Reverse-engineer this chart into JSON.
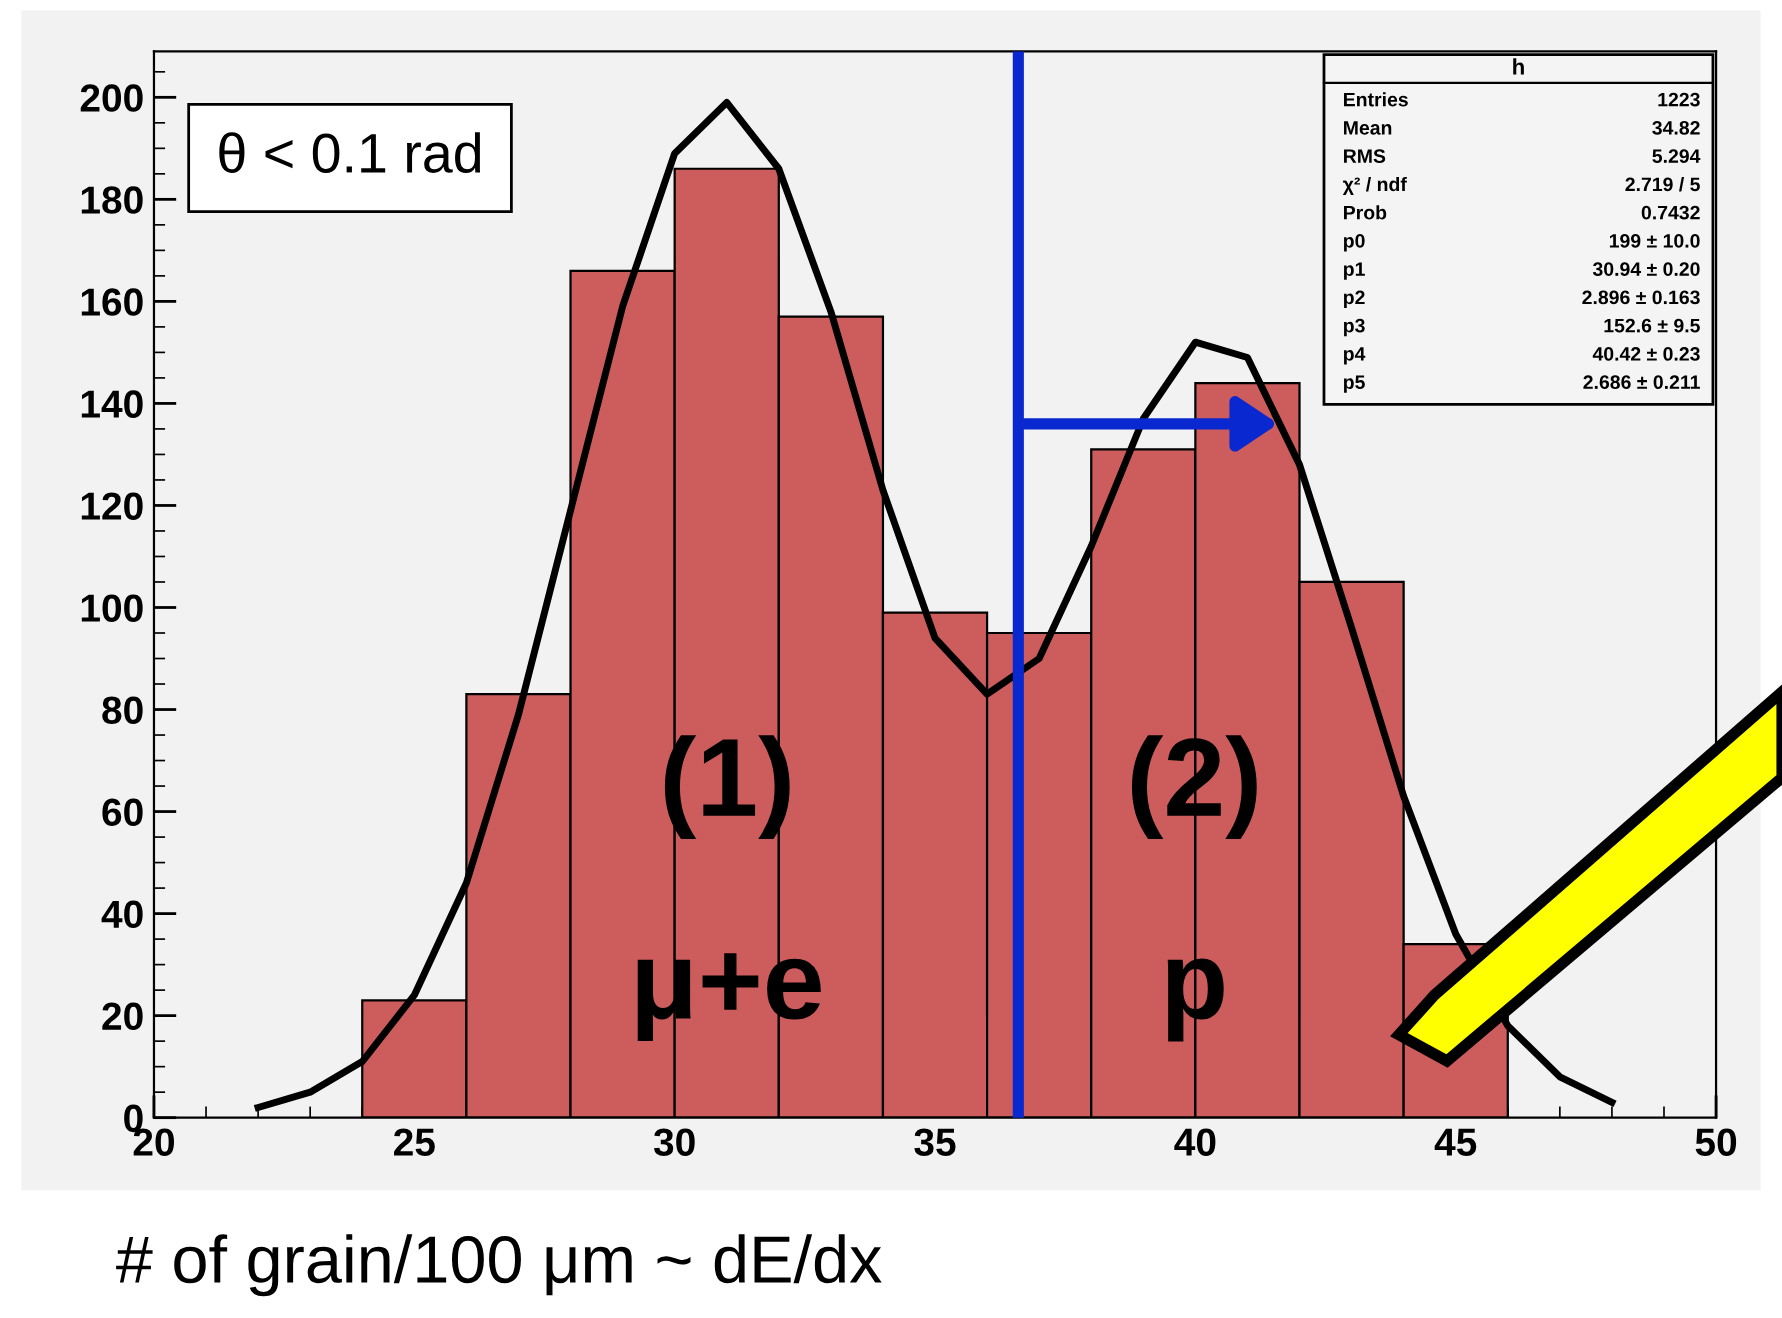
{
  "chart_data": {
    "type": "histogram",
    "xlabel": "# of grain/100 μm ~ dE/dx",
    "bins": [
      24,
      26,
      28,
      30,
      32,
      34,
      36,
      38,
      40,
      42,
      44,
      46
    ],
    "values": [
      23,
      83,
      166,
      186,
      157,
      99,
      95,
      131,
      144,
      105,
      34
    ],
    "color": "#cd5c5c",
    "series": [
      {
        "type": "line",
        "color": "#000000",
        "x": [
          22,
          23,
          24,
          25,
          26,
          27,
          28,
          29,
          30,
          31,
          32,
          33,
          34,
          35,
          36,
          37,
          38,
          39,
          40,
          41,
          42,
          43,
          44,
          45,
          46,
          47,
          48
        ],
        "values": [
          2,
          5,
          11,
          24,
          46,
          79,
          119,
          159,
          189,
          199,
          186,
          158,
          123,
          94,
          83,
          90,
          112,
          137,
          152,
          149,
          128,
          96,
          63,
          36,
          18,
          8,
          3
        ]
      }
    ],
    "xlim": [
      20,
      50
    ],
    "ylim": [
      0,
      209
    ],
    "xticks": [
      20,
      25,
      30,
      35,
      40,
      45,
      50
    ],
    "yticks": [
      0,
      20,
      40,
      60,
      80,
      100,
      120,
      140,
      160,
      180,
      200
    ],
    "grid": false,
    "ref_lines": [
      {
        "axis": "x",
        "value": 36.6,
        "color": "#0a28d0"
      }
    ],
    "annotations": [
      "θ < 0.1 rad",
      "h",
      "Entries",
      "1223",
      "Mean",
      "34.82",
      "RMS",
      "5.294",
      "χ² / ndf",
      "2.719 / 5",
      "Prob",
      "0.7432",
      "p0",
      "199 ± 10.0",
      "p1",
      "30.94 ± 0.20",
      "p2",
      "2.896 ± 0.163",
      "p3",
      "152.6 ± 9.5",
      "p4",
      "40.42 ± 0.23",
      "p5",
      "2.686 ± 0.211",
      "(1)",
      "μ+e",
      "(2)",
      "p"
    ]
  }
}
